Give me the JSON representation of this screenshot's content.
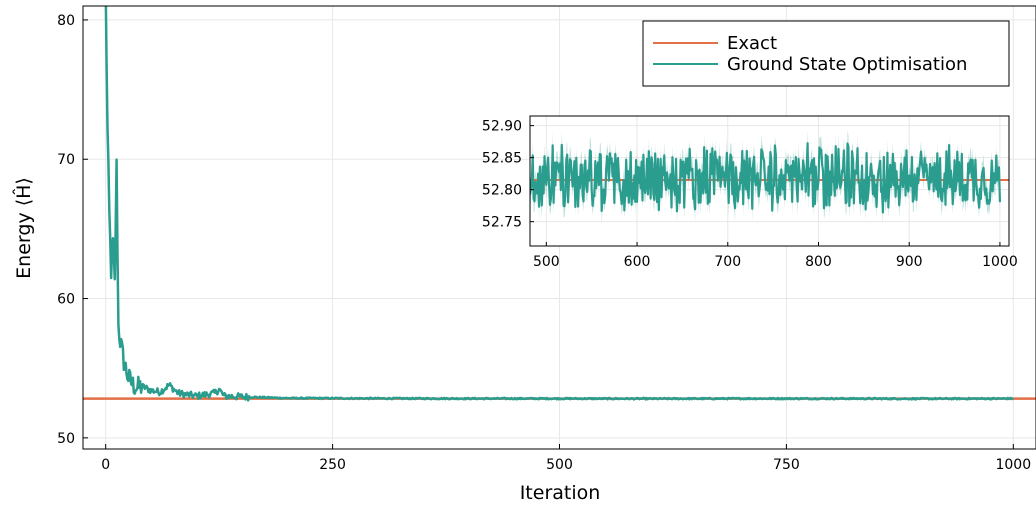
{
  "chart_data": [
    {
      "type": "line",
      "title": "",
      "xlabel": "Iteration",
      "ylabel": "Energy ⟨Ĥ⟩",
      "xlim": [
        -25,
        1025
      ],
      "ylim": [
        49.2,
        81
      ],
      "xticks": [
        0,
        250,
        500,
        750,
        1000
      ],
      "xtick_labels": [
        "0",
        "250",
        "500",
        "750",
        "1000"
      ],
      "yticks": [
        50,
        60,
        70,
        80
      ],
      "ytick_labels": [
        "50",
        "60",
        "70",
        "80"
      ],
      "grid": true,
      "legend_position": "top-right",
      "series": [
        {
          "name": "Exact",
          "color": "#e26f46",
          "x": [
            -25,
            1025
          ],
          "y": [
            52.815,
            52.815
          ]
        },
        {
          "name": "Ground State Optimisation",
          "color": "#2a9d8f",
          "x": [
            0,
            2,
            4,
            6,
            8,
            10,
            12,
            14,
            16,
            20,
            25,
            30,
            35,
            40,
            50,
            60,
            70,
            80,
            100,
            120,
            125,
            130,
            150,
            200,
            300,
            400,
            500,
            600,
            700,
            800,
            900,
            1000
          ],
          "y": [
            82,
            72,
            66,
            62,
            64,
            61,
            69.5,
            58,
            57,
            55.5,
            54.3,
            53.8,
            53.6,
            53.7,
            53.4,
            53.3,
            53.8,
            53.2,
            53.0,
            53.2,
            53.5,
            53.0,
            52.95,
            52.85,
            52.83,
            52.82,
            52.82,
            52.81,
            52.82,
            52.82,
            52.81,
            52.82
          ]
        }
      ]
    },
    {
      "type": "line",
      "title": "",
      "xlabel": "",
      "ylabel": "",
      "xlim": [
        482,
        1010
      ],
      "ylim": [
        52.712,
        52.915
      ],
      "xticks": [
        500,
        600,
        700,
        800,
        900,
        1000
      ],
      "xtick_labels": [
        "500",
        "600",
        "700",
        "800",
        "900",
        "1000"
      ],
      "yticks": [
        52.75,
        52.8,
        52.85,
        52.9
      ],
      "ytick_labels": [
        "52.75",
        "52.80",
        "52.85",
        "52.90"
      ],
      "grid": true,
      "series": [
        {
          "name": "Exact",
          "color": "#e26f46",
          "x": [
            482,
            1010
          ],
          "y": [
            52.815,
            52.815
          ]
        },
        {
          "name": "Ground State Optimisation",
          "color": "#2a9d8f",
          "x_start": 482,
          "x_end": 1000,
          "mean": 52.818,
          "amplitude": 0.045,
          "band_halfwidth": 0.012
        }
      ]
    }
  ]
}
